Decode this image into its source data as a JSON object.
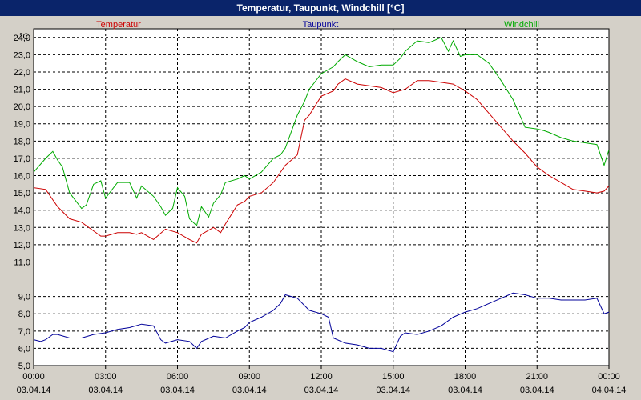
{
  "window": {
    "title": "Temperatur, Taupunkt, Windchill [°C]"
  },
  "chart_data": {
    "type": "line",
    "title": "Temperatur, Taupunkt, Windchill [°C]",
    "ylabel": "°C",
    "ylim": [
      5.0,
      24.5
    ],
    "yticks": [
      "5,0",
      "6,0",
      "7,0",
      "8,0",
      "9,0",
      "11,0",
      "12,0",
      "13,0",
      "14,0",
      "15,0",
      "16,0",
      "17,0",
      "18,0",
      "19,0",
      "20,0",
      "21,0",
      "22,0",
      "23,0",
      "24,0"
    ],
    "ytick_values": [
      5,
      6,
      7,
      8,
      9,
      11,
      12,
      13,
      14,
      15,
      16,
      17,
      18,
      19,
      20,
      21,
      22,
      23,
      24
    ],
    "xlim": [
      0,
      24
    ],
    "xticks": [
      {
        "time": "00:00",
        "date": "03.04.14",
        "h": 0
      },
      {
        "time": "03:00",
        "date": "03.04.14",
        "h": 3
      },
      {
        "time": "06:00",
        "date": "03.04.14",
        "h": 6
      },
      {
        "time": "09:00",
        "date": "03.04.14",
        "h": 9
      },
      {
        "time": "12:00",
        "date": "03.04.14",
        "h": 12
      },
      {
        "time": "15:00",
        "date": "03.04.14",
        "h": 15
      },
      {
        "time": "18:00",
        "date": "03.04.14",
        "h": 18
      },
      {
        "time": "21:00",
        "date": "03.04.14",
        "h": 21
      },
      {
        "time": "00:00",
        "date": "04.04.14",
        "h": 24
      }
    ],
    "grid": true,
    "legend_placement": "top",
    "series": [
      {
        "name": "Temperatur",
        "color": "#cc0000",
        "x": [
          0,
          0.5,
          1,
          1.5,
          2,
          2.5,
          2.8,
          3,
          3.5,
          4,
          4.3,
          4.5,
          5,
          5.5,
          6,
          6.5,
          6.8,
          7,
          7.5,
          7.8,
          8,
          8.5,
          8.8,
          9,
          9.5,
          10,
          10.5,
          11,
          11.3,
          11.5,
          12,
          12.5,
          12.7,
          13,
          13.5,
          14,
          14.5,
          15,
          15.5,
          16,
          16.5,
          17,
          17.5,
          18,
          18.5,
          19,
          19.5,
          20,
          20.5,
          21,
          21.5,
          22,
          22.5,
          23,
          23.5,
          23.8,
          24
        ],
        "values": [
          15.3,
          15.2,
          14.2,
          13.5,
          13.3,
          12.8,
          12.5,
          12.5,
          12.7,
          12.7,
          12.6,
          12.7,
          12.3,
          12.9,
          12.7,
          12.3,
          12.1,
          12.6,
          13.0,
          12.7,
          13.2,
          14.3,
          14.5,
          14.8,
          15.0,
          15.6,
          16.6,
          17.2,
          19.2,
          19.5,
          20.6,
          20.9,
          21.3,
          21.6,
          21.3,
          21.2,
          21.1,
          20.8,
          21.0,
          21.5,
          21.5,
          21.4,
          21.3,
          20.9,
          20.4,
          19.6,
          18.8,
          18.0,
          17.3,
          16.5,
          16.0,
          15.6,
          15.2,
          15.1,
          15.0,
          15.1,
          15.4
        ]
      },
      {
        "name": "Taupunkt",
        "color": "#000099",
        "x": [
          0,
          0.3,
          0.5,
          0.8,
          1,
          1.5,
          2,
          2.5,
          3,
          3.5,
          4,
          4.5,
          5,
          5.3,
          5.5,
          6,
          6.5,
          6.8,
          7,
          7.5,
          8,
          8.5,
          8.8,
          9,
          9.5,
          10,
          10.3,
          10.5,
          11,
          11.5,
          12,
          12.3,
          12.5,
          13,
          13.5,
          14,
          14.5,
          15,
          15.3,
          15.5,
          16,
          16.5,
          17,
          17.5,
          18,
          18.5,
          19,
          19.5,
          20,
          20.5,
          21,
          21.5,
          22,
          22.5,
          23,
          23.5,
          23.8,
          24
        ],
        "values": [
          6.5,
          6.4,
          6.5,
          6.8,
          6.8,
          6.6,
          6.6,
          6.8,
          6.9,
          7.1,
          7.2,
          7.4,
          7.3,
          6.5,
          6.3,
          6.5,
          6.4,
          6.0,
          6.4,
          6.7,
          6.6,
          7.0,
          7.2,
          7.5,
          7.8,
          8.2,
          8.6,
          9.1,
          8.9,
          8.2,
          8.0,
          7.8,
          6.6,
          6.3,
          6.2,
          6.0,
          6.0,
          5.8,
          6.7,
          6.9,
          6.8,
          7.0,
          7.3,
          7.8,
          8.1,
          8.3,
          8.6,
          8.9,
          9.2,
          9.1,
          8.9,
          8.9,
          8.8,
          8.8,
          8.8,
          8.9,
          8.0,
          8.1
        ]
      },
      {
        "name": "Windchill",
        "color": "#00aa00",
        "x": [
          0,
          0.5,
          0.8,
          1,
          1.2,
          1.5,
          2,
          2.2,
          2.5,
          2.8,
          3,
          3.5,
          4,
          4.3,
          4.5,
          5,
          5.3,
          5.5,
          5.8,
          6,
          6.3,
          6.5,
          6.8,
          7,
          7.3,
          7.5,
          7.8,
          8,
          8.5,
          8.8,
          9,
          9.5,
          10,
          10.3,
          10.5,
          11,
          11.3,
          11.5,
          12,
          12.5,
          12.7,
          13,
          13.5,
          14,
          14.5,
          15,
          15.3,
          15.5,
          16,
          16.5,
          17,
          17.3,
          17.5,
          17.8,
          18,
          18.5,
          19,
          19.5,
          20,
          20.5,
          21,
          21.3,
          21.5,
          22,
          22.5,
          23,
          23.5,
          23.8,
          24
        ],
        "values": [
          16.2,
          17.0,
          17.4,
          16.9,
          16.5,
          15.0,
          14.1,
          14.3,
          15.5,
          15.7,
          14.7,
          15.6,
          15.6,
          14.7,
          15.4,
          14.8,
          14.2,
          13.7,
          14.1,
          15.3,
          14.8,
          13.5,
          13.1,
          14.2,
          13.6,
          14.4,
          14.9,
          15.6,
          15.8,
          16.0,
          15.8,
          16.2,
          17.0,
          17.2,
          17.6,
          19.5,
          20.3,
          21.0,
          21.9,
          22.3,
          22.6,
          23.0,
          22.6,
          22.3,
          22.4,
          22.4,
          22.8,
          23.2,
          23.8,
          23.7,
          24.0,
          23.2,
          23.8,
          22.9,
          23.0,
          23.0,
          22.5,
          21.5,
          20.4,
          18.8,
          18.7,
          18.6,
          18.5,
          18.2,
          18.0,
          17.9,
          17.8,
          16.6,
          17.5
        ]
      }
    ]
  }
}
